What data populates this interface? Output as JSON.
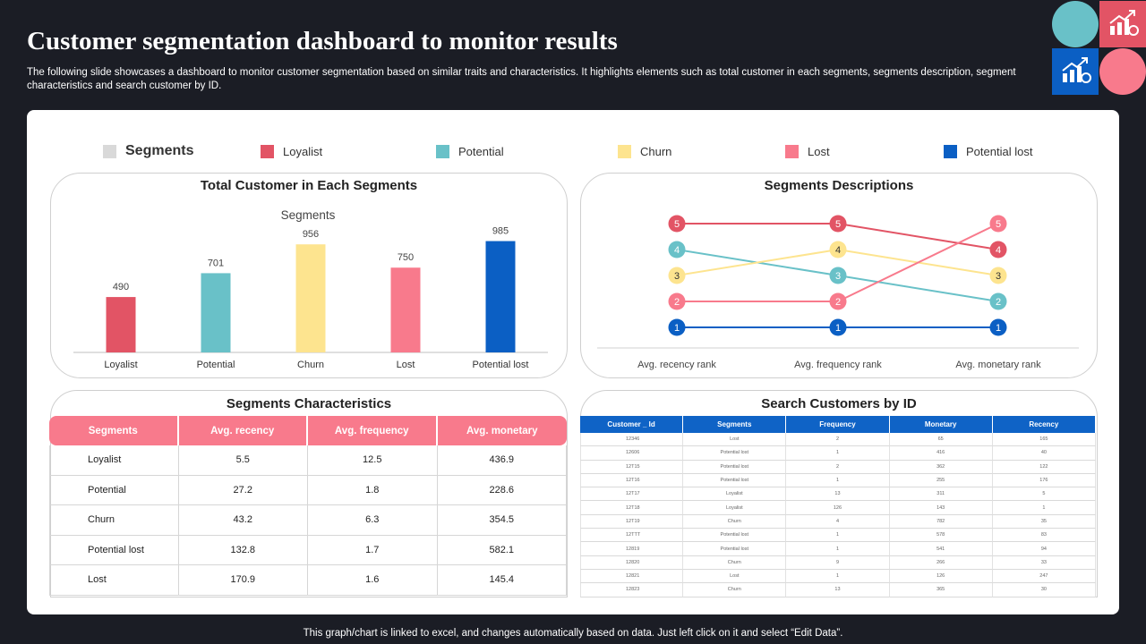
{
  "header": {
    "title": "Customer segmentation dashboard to monitor results",
    "description": "The following slide showcases a dashboard to monitor customer segmentation based on similar traits and characteristics. It highlights elements such as total customer in each segments, segments description, segment characteristics and search customer by ID."
  },
  "legend": {
    "heading": "Segments",
    "items": [
      {
        "label": "Loyalist",
        "color": "#e25465"
      },
      {
        "label": "Potential",
        "color": "#69c1c8"
      },
      {
        "label": "Churn",
        "color": "#fde48f"
      },
      {
        "label": "Lost",
        "color": "#f87a8c"
      },
      {
        "label": "Potential lost",
        "color": "#0b5fc4"
      }
    ]
  },
  "colors": {
    "accent_teal": "#69c1c8",
    "accent_red": "#e25465",
    "accent_pink": "#f87a8c",
    "accent_blue": "#0b5fc4"
  },
  "chart_data": [
    {
      "type": "bar",
      "panel_title": "Total Customer in Each  Segments",
      "title": "Segments",
      "categories": [
        "Loyalist",
        "Potential",
        "Churn",
        "Lost",
        "Potential lost"
      ],
      "values": [
        490,
        701,
        956,
        750,
        985
      ],
      "colors": [
        "#e25465",
        "#69c1c8",
        "#fde48f",
        "#f87a8c",
        "#0b5fc4"
      ],
      "ylim": [
        0,
        1100
      ]
    },
    {
      "type": "line",
      "panel_title": "Segments Descriptions",
      "categories": [
        "Avg. recency rank",
        "Avg. frequency rank",
        "Avg. monetary rank"
      ],
      "ylim": [
        0.5,
        5.5
      ],
      "series": [
        {
          "values": [
            5,
            5,
            4
          ],
          "color": "#e25465"
        },
        {
          "values": [
            4,
            3,
            2
          ],
          "color": "#69c1c8"
        },
        {
          "values": [
            3,
            4,
            3
          ],
          "color": "#fde48f"
        },
        {
          "values": [
            2,
            2,
            5
          ],
          "color": "#f87a8c"
        },
        {
          "values": [
            1,
            1,
            1
          ],
          "color": "#0b5fc4"
        }
      ]
    }
  ],
  "characteristics": {
    "title": "Segments Characteristics",
    "columns": [
      "Segments",
      "Avg. recency",
      "Avg. frequency",
      "Avg. monetary"
    ],
    "rows": [
      [
        "Loyalist",
        "5.5",
        "12.5",
        "436.9"
      ],
      [
        "Potential",
        "27.2",
        "1.8",
        "228.6"
      ],
      [
        "Churn",
        "43.2",
        "6.3",
        "354.5"
      ],
      [
        "Potential  lost",
        "132.8",
        "1.7",
        "582.1"
      ],
      [
        "Lost",
        "170.9",
        "1.6",
        "145.4"
      ]
    ]
  },
  "search": {
    "title": "Search Customers by ID",
    "columns": [
      "Customer _ Id",
      "Segments",
      "Frequency",
      "Monetary",
      "Recency"
    ],
    "rows": [
      [
        "12346",
        "Lost",
        "2",
        "65",
        "165"
      ],
      [
        "12606",
        "Potential lost",
        "1",
        "416",
        "40"
      ],
      [
        "12T15",
        "Potential lost",
        "2",
        "362",
        "122"
      ],
      [
        "12T16",
        "Potential lost",
        "1",
        "255",
        "176"
      ],
      [
        "12T17",
        "Loyalist",
        "13",
        "311",
        "5"
      ],
      [
        "12T18",
        "Loyalist",
        "126",
        "143",
        "1"
      ],
      [
        "12T19",
        "Churn",
        "4",
        "782",
        "35"
      ],
      [
        "12TTT",
        "Potential lost",
        "1",
        "578",
        "83"
      ],
      [
        "12819",
        "Potential lost",
        "1",
        "541",
        "94"
      ],
      [
        "12820",
        "Churn",
        "9",
        "266",
        "33"
      ],
      [
        "12821",
        "Lost",
        "1",
        "126",
        "247"
      ],
      [
        "12823",
        "Churn",
        "13",
        "365",
        "30"
      ]
    ]
  },
  "footer": "This graph/chart is linked to excel,  and changes automatically based on data. Just left click on it and select “Edit Data”."
}
